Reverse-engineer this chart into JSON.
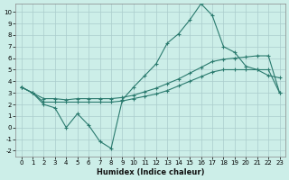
{
  "xlabel": "Humidex (Indice chaleur)",
  "background_color": "#cceee8",
  "grid_color": "#aacccc",
  "line_color": "#2a7a6e",
  "xlim": [
    -0.5,
    23.5
  ],
  "ylim": [
    -2.5,
    10.7
  ],
  "xticks": [
    0,
    1,
    2,
    3,
    4,
    5,
    6,
    7,
    8,
    9,
    10,
    11,
    12,
    13,
    14,
    15,
    16,
    17,
    18,
    19,
    20,
    21,
    22,
    23
  ],
  "yticks": [
    -2,
    -1,
    0,
    1,
    2,
    3,
    4,
    5,
    6,
    7,
    8,
    9,
    10
  ],
  "x": [
    0,
    1,
    2,
    3,
    4,
    5,
    6,
    7,
    8,
    9,
    10,
    11,
    12,
    13,
    14,
    15,
    16,
    17,
    18,
    19,
    20,
    21,
    22,
    23
  ],
  "line_jagged": [
    3.5,
    3.0,
    2.0,
    1.7,
    0.0,
    1.2,
    0.2,
    -1.2,
    -1.8,
    2.4,
    3.5,
    4.5,
    5.5,
    7.3,
    8.1,
    9.3,
    10.7,
    9.7,
    7.0,
    6.5,
    5.3,
    5.0,
    4.5,
    4.3
  ],
  "line_upper": [
    3.5,
    3.0,
    2.5,
    2.5,
    2.4,
    2.5,
    2.5,
    2.5,
    2.5,
    2.6,
    2.8,
    3.1,
    3.4,
    3.8,
    4.2,
    4.7,
    5.2,
    5.7,
    5.9,
    6.0,
    6.1,
    6.2,
    6.2,
    3.0
  ],
  "line_lower": [
    3.5,
    3.0,
    2.2,
    2.2,
    2.2,
    2.2,
    2.2,
    2.2,
    2.2,
    2.3,
    2.5,
    2.7,
    2.9,
    3.2,
    3.6,
    4.0,
    4.4,
    4.8,
    5.0,
    5.0,
    5.0,
    5.0,
    5.0,
    3.0
  ]
}
